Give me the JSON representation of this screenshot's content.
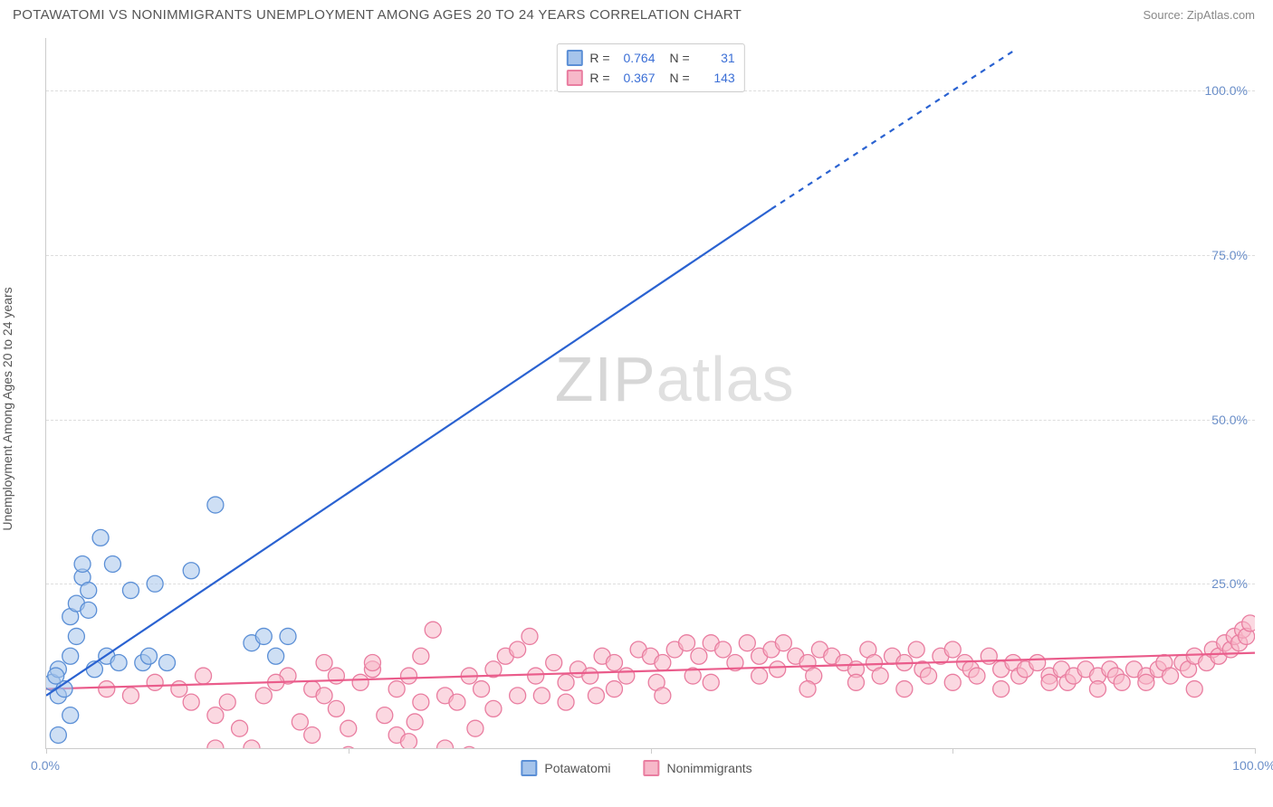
{
  "header": {
    "title": "POTAWATOMI VS NONIMMIGRANTS UNEMPLOYMENT AMONG AGES 20 TO 24 YEARS CORRELATION CHART",
    "source": "Source: ZipAtlas.com"
  },
  "chart": {
    "type": "scatter",
    "ylabel": "Unemployment Among Ages 20 to 24 years",
    "xlim": [
      0,
      100
    ],
    "ylim": [
      0,
      108
    ],
    "yticks": [
      25,
      50,
      75,
      100
    ],
    "yticklabels": [
      "25.0%",
      "50.0%",
      "75.0%",
      "100.0%"
    ],
    "xticks_lines": [
      0,
      25,
      50,
      75,
      100
    ],
    "xticklabels": [
      {
        "pos": 0,
        "label": "0.0%"
      },
      {
        "pos": 100,
        "label": "100.0%"
      }
    ],
    "background_color": "#ffffff",
    "grid_color": "#dddddd",
    "axis_color": "#cccccc",
    "colors": {
      "blue_fill": "#a6c4eb",
      "blue_stroke": "#5b8fd6",
      "blue_line": "#2a62d1",
      "pink_fill": "#f7b8c9",
      "pink_stroke": "#e97da0",
      "pink_line": "#ea5c8b",
      "tick_label": "#6b8fc9"
    },
    "marker_radius": 9,
    "marker_opacity": 0.55,
    "line_width": 2.2,
    "watermark": {
      "zip": "ZIP",
      "atlas": "atlas"
    },
    "stats": [
      {
        "series": "blue",
        "R_label": "R =",
        "R": "0.764",
        "N_label": "N =",
        "N": "31"
      },
      {
        "series": "pink",
        "R_label": "R =",
        "R": "0.367",
        "N_label": "N =",
        "N": "143"
      }
    ],
    "legend": [
      {
        "series": "blue",
        "label": "Potawatomi"
      },
      {
        "series": "pink",
        "label": "Nonimmigrants"
      }
    ],
    "series": {
      "blue": {
        "trend": {
          "x1": 0,
          "y1": 8,
          "x2": 60,
          "y2": 82,
          "dashed_from_x": 60,
          "dashed_to_x": 80,
          "dashed_to_y": 106
        },
        "points": [
          [
            0.5,
            10
          ],
          [
            1,
            12
          ],
          [
            1,
            8
          ],
          [
            1.5,
            9
          ],
          [
            2,
            14
          ],
          [
            2,
            20
          ],
          [
            2.5,
            17
          ],
          [
            2.5,
            22
          ],
          [
            3,
            26
          ],
          [
            3,
            28
          ],
          [
            3.5,
            21
          ],
          [
            3.5,
            24
          ],
          [
            4,
            12
          ],
          [
            4.5,
            32
          ],
          [
            5,
            14
          ],
          [
            5.5,
            28
          ],
          [
            6,
            13
          ],
          [
            7,
            24
          ],
          [
            8,
            13
          ],
          [
            8.5,
            14
          ],
          [
            9,
            25
          ],
          [
            10,
            13
          ],
          [
            12,
            27
          ],
          [
            14,
            37
          ],
          [
            17,
            16
          ],
          [
            18,
            17
          ],
          [
            19,
            14
          ],
          [
            20,
            17
          ],
          [
            1,
            2
          ],
          [
            2,
            5
          ],
          [
            0.8,
            11
          ]
        ]
      },
      "pink": {
        "trend": {
          "x1": 0,
          "y1": 9,
          "x2": 100,
          "y2": 14.5
        },
        "points": [
          [
            12,
            7
          ],
          [
            14,
            5
          ],
          [
            16,
            3
          ],
          [
            18,
            8
          ],
          [
            20,
            11
          ],
          [
            21,
            4
          ],
          [
            22,
            2
          ],
          [
            23,
            13
          ],
          [
            24,
            6
          ],
          [
            25,
            3
          ],
          [
            26,
            10
          ],
          [
            27,
            12
          ],
          [
            28,
            5
          ],
          [
            29,
            2
          ],
          [
            30,
            11
          ],
          [
            30.5,
            4
          ],
          [
            31,
            14
          ],
          [
            32,
            18
          ],
          [
            33,
            8
          ],
          [
            34,
            7
          ],
          [
            35,
            11
          ],
          [
            35.5,
            3
          ],
          [
            36,
            9
          ],
          [
            37,
            12
          ],
          [
            38,
            14
          ],
          [
            39,
            15
          ],
          [
            40,
            17
          ],
          [
            40.5,
            11
          ],
          [
            41,
            8
          ],
          [
            42,
            13
          ],
          [
            43,
            10
          ],
          [
            44,
            12
          ],
          [
            45,
            11
          ],
          [
            45.5,
            8
          ],
          [
            46,
            14
          ],
          [
            47,
            13
          ],
          [
            48,
            11
          ],
          [
            49,
            15
          ],
          [
            50,
            14
          ],
          [
            50.5,
            10
          ],
          [
            51,
            13
          ],
          [
            52,
            15
          ],
          [
            53,
            16
          ],
          [
            53.5,
            11
          ],
          [
            54,
            14
          ],
          [
            55,
            16
          ],
          [
            56,
            15
          ],
          [
            57,
            13
          ],
          [
            58,
            16
          ],
          [
            59,
            14
          ],
          [
            60,
            15
          ],
          [
            60.5,
            12
          ],
          [
            61,
            16
          ],
          [
            62,
            14
          ],
          [
            63,
            13
          ],
          [
            63.5,
            11
          ],
          [
            64,
            15
          ],
          [
            65,
            14
          ],
          [
            66,
            13
          ],
          [
            67,
            12
          ],
          [
            68,
            15
          ],
          [
            68.5,
            13
          ],
          [
            69,
            11
          ],
          [
            70,
            14
          ],
          [
            71,
            13
          ],
          [
            72,
            15
          ],
          [
            72.5,
            12
          ],
          [
            73,
            11
          ],
          [
            74,
            14
          ],
          [
            75,
            15
          ],
          [
            76,
            13
          ],
          [
            76.5,
            12
          ],
          [
            77,
            11
          ],
          [
            78,
            14
          ],
          [
            79,
            12
          ],
          [
            80,
            13
          ],
          [
            80.5,
            11
          ],
          [
            81,
            12
          ],
          [
            82,
            13
          ],
          [
            83,
            11
          ],
          [
            84,
            12
          ],
          [
            84.5,
            10
          ],
          [
            85,
            11
          ],
          [
            86,
            12
          ],
          [
            87,
            11
          ],
          [
            88,
            12
          ],
          [
            88.5,
            11
          ],
          [
            89,
            10
          ],
          [
            90,
            12
          ],
          [
            91,
            11
          ],
          [
            92,
            12
          ],
          [
            92.5,
            13
          ],
          [
            93,
            11
          ],
          [
            94,
            13
          ],
          [
            94.5,
            12
          ],
          [
            95,
            14
          ],
          [
            96,
            13
          ],
          [
            96.5,
            15
          ],
          [
            97,
            14
          ],
          [
            97.5,
            16
          ],
          [
            98,
            15
          ],
          [
            98.3,
            17
          ],
          [
            98.7,
            16
          ],
          [
            99,
            18
          ],
          [
            99.3,
            17
          ],
          [
            99.6,
            19
          ],
          [
            14,
            0
          ],
          [
            17,
            0
          ],
          [
            21,
            -2
          ],
          [
            25,
            -1
          ],
          [
            28,
            -2
          ],
          [
            30,
            1
          ],
          [
            33,
            0
          ],
          [
            35,
            -1
          ],
          [
            22,
            9
          ],
          [
            24,
            11
          ],
          [
            27,
            13
          ],
          [
            5,
            9
          ],
          [
            7,
            8
          ],
          [
            9,
            10
          ],
          [
            11,
            9
          ],
          [
            13,
            11
          ],
          [
            15,
            7
          ],
          [
            19,
            10
          ],
          [
            23,
            8
          ],
          [
            29,
            9
          ],
          [
            31,
            7
          ],
          [
            37,
            6
          ],
          [
            39,
            8
          ],
          [
            43,
            7
          ],
          [
            47,
            9
          ],
          [
            51,
            8
          ],
          [
            55,
            10
          ],
          [
            59,
            11
          ],
          [
            63,
            9
          ],
          [
            67,
            10
          ],
          [
            71,
            9
          ],
          [
            75,
            10
          ],
          [
            79,
            9
          ],
          [
            83,
            10
          ],
          [
            87,
            9
          ],
          [
            91,
            10
          ],
          [
            95,
            9
          ]
        ]
      }
    }
  }
}
